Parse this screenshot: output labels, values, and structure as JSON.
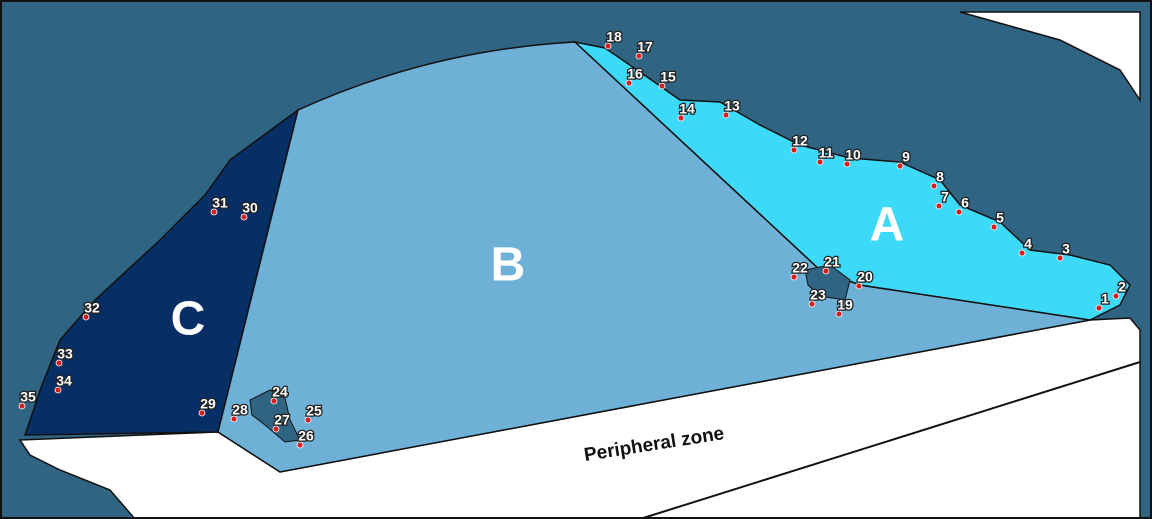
{
  "zones": [
    {
      "label": "A"
    },
    {
      "label": "B"
    },
    {
      "label": "C"
    }
  ],
  "peripheral_zone": "Peripheral zone",
  "stations": [
    "1",
    "2",
    "3",
    "4",
    "5",
    "6",
    "7",
    "8",
    "9",
    "10",
    "11",
    "12",
    "13",
    "14",
    "15",
    "16",
    "17",
    "18",
    "19",
    "20",
    "21",
    "22",
    "23",
    "24",
    "25",
    "26",
    "27",
    "28",
    "29",
    "30",
    "31",
    "32",
    "33",
    "34",
    "35"
  ]
}
